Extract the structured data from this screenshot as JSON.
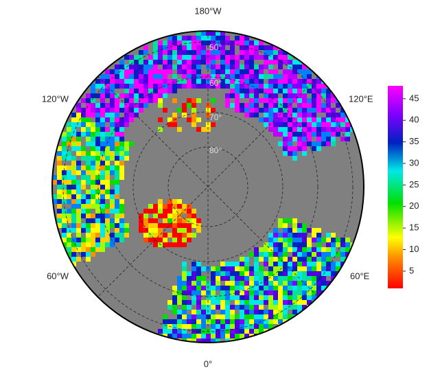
{
  "map": {
    "longitude_labels": [
      "180°W",
      "120°E",
      "60°E",
      "0°",
      "60°W",
      "120°W"
    ],
    "latitude_labels": [
      "50°",
      "60°",
      "70°",
      "80°"
    ],
    "colorbar": {
      "lim": [
        1,
        48
      ],
      "ticks": [
        5,
        10,
        15,
        20,
        25,
        30,
        35,
        40,
        45
      ]
    }
  }
}
